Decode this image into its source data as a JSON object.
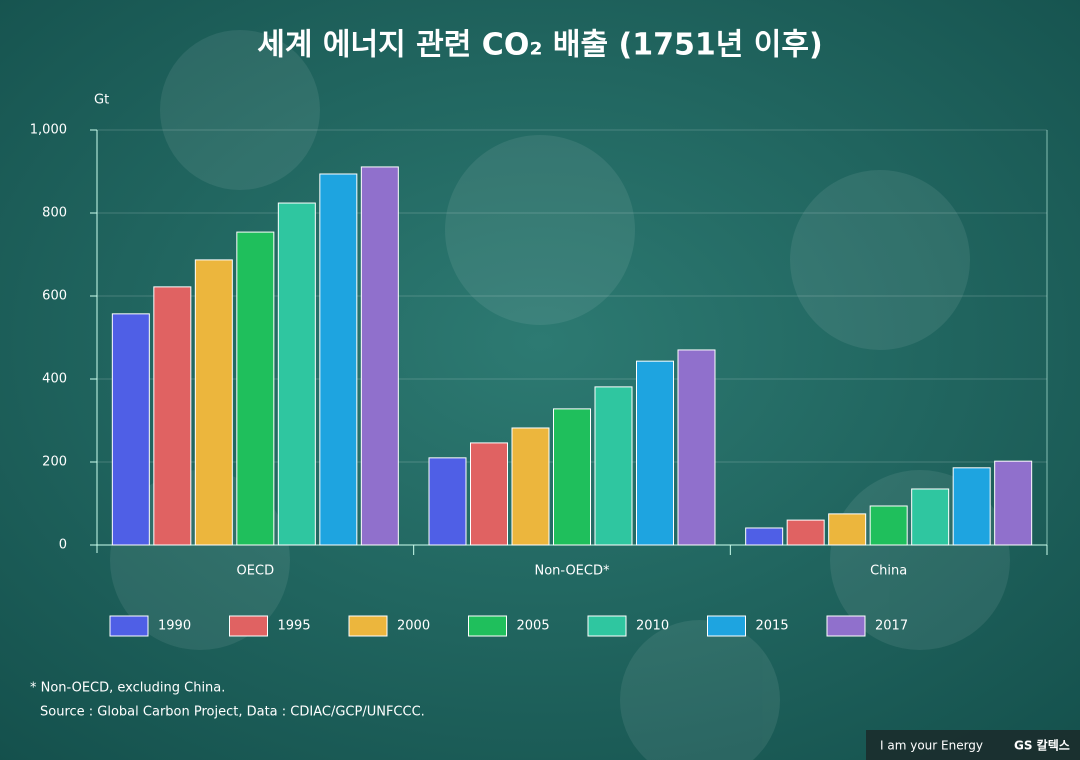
{
  "chart_data": {
    "type": "bar",
    "title": "세계 에너지 관련 CO₂ 배출 (1751년 이후)",
    "y_label": "Gt",
    "categories": [
      "OECD",
      "Non-OECD*",
      "China"
    ],
    "series": [
      {
        "name": "1990",
        "color": "#4f5fe6",
        "values": [
          557,
          210,
          41
        ]
      },
      {
        "name": "1995",
        "color": "#e06262",
        "values": [
          622,
          246,
          60
        ]
      },
      {
        "name": "2000",
        "color": "#ecb63d",
        "values": [
          687,
          282,
          75
        ]
      },
      {
        "name": "2005",
        "color": "#1fbf5c",
        "values": [
          754,
          328,
          94
        ]
      },
      {
        "name": "2010",
        "color": "#2fc6a0",
        "values": [
          824,
          381,
          135
        ]
      },
      {
        "name": "2015",
        "color": "#1ea4e0",
        "values": [
          894,
          443,
          186
        ]
      },
      {
        "name": "2017",
        "color": "#9070cc",
        "values": [
          911,
          470,
          202
        ]
      }
    ],
    "ylim": [
      0,
      1000
    ],
    "yticks": [
      0,
      200,
      400,
      600,
      800,
      {
        "value": 1000,
        "label": "1,000"
      }
    ],
    "grid": true,
    "legend": "bottom"
  },
  "footnotes": [
    "* Non-OECD, excluding China.",
    "Source : Global Carbon Project, Data : CDIAC/GCP/UNFCCC."
  ],
  "branding": {
    "slogan": "I am your Energy",
    "logo": "GS 칼텍스"
  }
}
